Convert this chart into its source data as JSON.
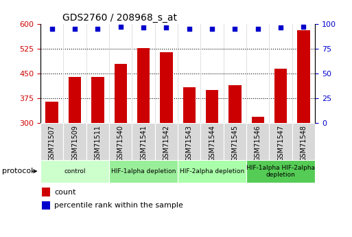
{
  "title": "GDS2760 / 208968_s_at",
  "samples": [
    "GSM71507",
    "GSM71509",
    "GSM71511",
    "GSM71540",
    "GSM71541",
    "GSM71542",
    "GSM71543",
    "GSM71544",
    "GSM71545",
    "GSM71546",
    "GSM71547",
    "GSM71548"
  ],
  "counts": [
    365,
    440,
    440,
    478,
    527,
    515,
    408,
    400,
    415,
    320,
    465,
    580
  ],
  "percentiles": [
    95,
    95,
    95,
    97,
    96,
    96,
    95,
    95,
    95,
    95,
    96,
    97
  ],
  "ylim_left": [
    300,
    600
  ],
  "ylim_right": [
    0,
    100
  ],
  "yticks_left": [
    300,
    375,
    450,
    525,
    600
  ],
  "yticks_right": [
    0,
    25,
    50,
    75,
    100
  ],
  "bar_color": "#cc0000",
  "dot_color": "#0000cc",
  "groups": [
    {
      "label": "control",
      "indices": [
        0,
        1,
        2
      ],
      "color": "#ccffcc"
    },
    {
      "label": "HIF-1alpha depletion",
      "indices": [
        3,
        4,
        5
      ],
      "color": "#99ee99"
    },
    {
      "label": "HIF-2alpha depletion",
      "indices": [
        6,
        7,
        8
      ],
      "color": "#aaffaa"
    },
    {
      "label": "HIF-1alpha HIF-2alpha\ndepletion",
      "indices": [
        9,
        10,
        11
      ],
      "color": "#55cc55"
    }
  ],
  "bg_plot": "#ffffff",
  "bg_ticklabel": "#d8d8d8",
  "grid_color": "#000000",
  "bar_color_hex": "#cc0000",
  "dot_color_hex": "#0000cc",
  "left_tick_color": "#cc0000",
  "right_tick_color": "#0000cc"
}
